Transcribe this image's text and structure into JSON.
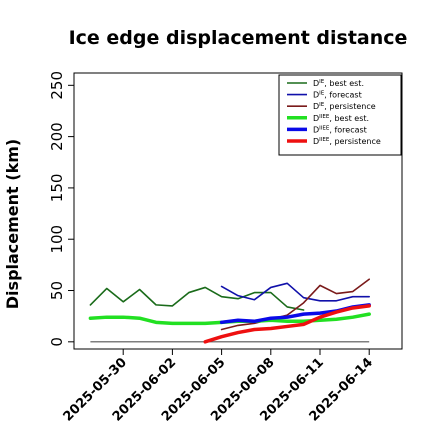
{
  "chart_data": {
    "type": "line",
    "title": "Ice edge displacement distance",
    "ylabel": "Displacement (km)",
    "xlabel": "",
    "ylim": [
      -7,
      262
    ],
    "yticks": [
      0,
      50,
      100,
      150,
      200,
      250
    ],
    "xrange_days": [
      "2025-05-27",
      "2025-06-16"
    ],
    "xticks": [
      {
        "label": "2025-05-30",
        "color": "#000000"
      },
      {
        "label": "2025-06-02",
        "color": "#000000"
      },
      {
        "label": "2025-06-05",
        "color": "#1a8a1a"
      },
      {
        "label": "2025-06-08",
        "color": "#000000"
      },
      {
        "label": "2025-06-11",
        "color": "#000000"
      },
      {
        "label": "2025-06-14",
        "color": "#000000"
      }
    ],
    "legend_position": "top-right",
    "series": [
      {
        "name": "D^IE, best est.",
        "legend_main": "D",
        "legend_sup": "IE",
        "legend_rest": ", best est.",
        "color": "#1a6b1a",
        "width": 1.6,
        "x": [
          "2025-05-28",
          "2025-05-29",
          "2025-05-30",
          "2025-05-31",
          "2025-06-01",
          "2025-06-02",
          "2025-06-03",
          "2025-06-04",
          "2025-06-05",
          "2025-06-06",
          "2025-06-07",
          "2025-06-08",
          "2025-06-09",
          "2025-06-10"
        ],
        "y": [
          36,
          52,
          39,
          51,
          36,
          35,
          48,
          53,
          44,
          42,
          48,
          48,
          34,
          31
        ]
      },
      {
        "name": "D^IE, forecast",
        "legend_main": "D",
        "legend_sup": "IE",
        "legend_rest": ", forecast",
        "color": "#1010aa",
        "width": 1.6,
        "x": [
          "2025-06-05",
          "2025-06-06",
          "2025-06-07",
          "2025-06-08",
          "2025-06-09",
          "2025-06-10",
          "2025-06-11",
          "2025-06-12",
          "2025-06-13",
          "2025-06-14"
        ],
        "y": [
          54,
          45,
          41,
          53,
          57,
          43,
          40,
          40,
          44,
          44
        ]
      },
      {
        "name": "D^IE, persistence",
        "legend_main": "D",
        "legend_sup": "IE",
        "legend_rest": ", persistence",
        "color": "#7a1a1a",
        "width": 1.6,
        "x": [
          "2025-06-05",
          "2025-06-06",
          "2025-06-07",
          "2025-06-08",
          "2025-06-09",
          "2025-06-10",
          "2025-06-11",
          "2025-06-12",
          "2025-06-13",
          "2025-06-14"
        ],
        "y": [
          12,
          16,
          18,
          22,
          26,
          38,
          55,
          47,
          49,
          61
        ]
      },
      {
        "name": "D^IIEE, best est.",
        "legend_main": "D",
        "legend_sup": "IIEE",
        "legend_rest": ", best est.",
        "color": "#22e022",
        "width": 3.5,
        "x": [
          "2025-05-28",
          "2025-05-29",
          "2025-05-30",
          "2025-05-31",
          "2025-06-01",
          "2025-06-02",
          "2025-06-03",
          "2025-06-04",
          "2025-06-05",
          "2025-06-06",
          "2025-06-07",
          "2025-06-08",
          "2025-06-09",
          "2025-06-10",
          "2025-06-11",
          "2025-06-12",
          "2025-06-13",
          "2025-06-14"
        ],
        "y": [
          23,
          24,
          24,
          23,
          19,
          18,
          18,
          18,
          19,
          20,
          20,
          21,
          20,
          20,
          21,
          22,
          24,
          27
        ]
      },
      {
        "name": "D^IIEE, forecast",
        "legend_main": "D",
        "legend_sup": "IIEE",
        "legend_rest": ", forecast",
        "color": "#0a0ae8",
        "width": 3.5,
        "x": [
          "2025-06-05",
          "2025-06-06",
          "2025-06-07",
          "2025-06-08",
          "2025-06-09",
          "2025-06-10",
          "2025-06-11",
          "2025-06-12",
          "2025-06-13",
          "2025-06-14"
        ],
        "y": [
          19,
          21,
          20,
          23,
          24,
          27,
          28,
          30,
          34,
          36
        ]
      },
      {
        "name": "D^IIEE, persistence",
        "legend_main": "D",
        "legend_sup": "IIEE",
        "legend_rest": ", persistence",
        "color": "#ee1010",
        "width": 3.5,
        "x": [
          "2025-06-04",
          "2025-06-05",
          "2025-06-06",
          "2025-06-07",
          "2025-06-08",
          "2025-06-09",
          "2025-06-10",
          "2025-06-11",
          "2025-06-12",
          "2025-06-13",
          "2025-06-14"
        ],
        "y": [
          0,
          5,
          9,
          12,
          13,
          15,
          17,
          24,
          29,
          33,
          35
        ]
      }
    ],
    "reference_line": {
      "color": "#555555",
      "y": 0,
      "x": [
        "2025-05-28",
        "2025-06-14"
      ]
    }
  }
}
